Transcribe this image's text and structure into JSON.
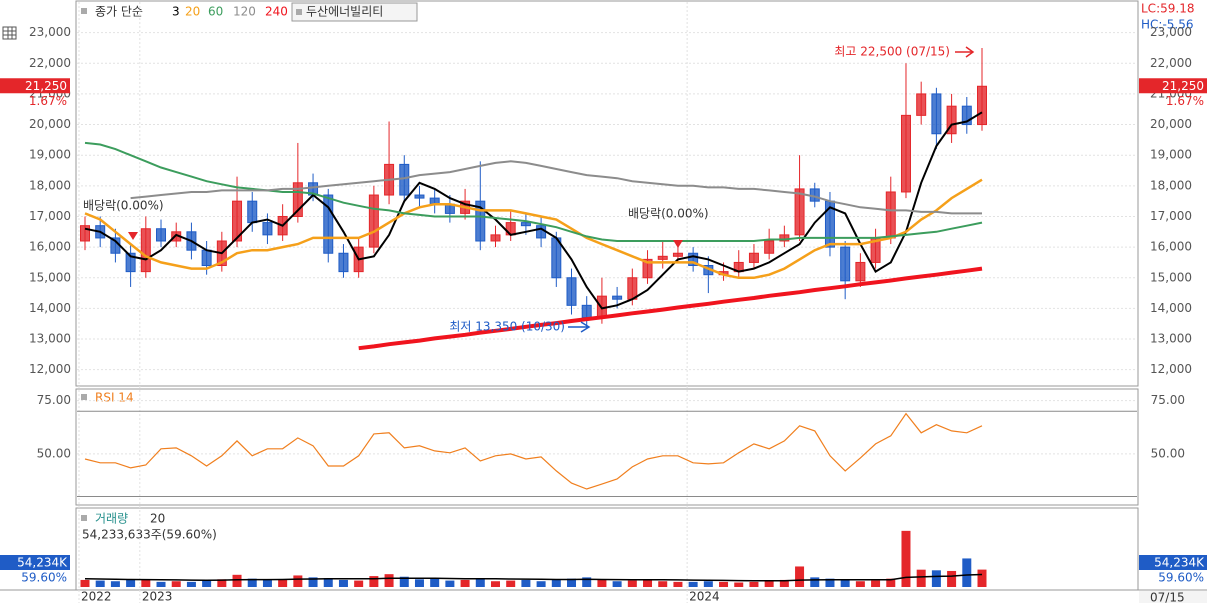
{
  "chart_data": [
    {
      "type": "candlestick",
      "title": "두산에너빌리티",
      "legend_prefix": "종가 단순",
      "categories": [
        "2022",
        null,
        null,
        null,
        "2023",
        null,
        null,
        null,
        null,
        null,
        null,
        null,
        null,
        null,
        null,
        null,
        null,
        null,
        null,
        null,
        null,
        null,
        null,
        null,
        null,
        null,
        null,
        null,
        null,
        null,
        null,
        null,
        null,
        null,
        null,
        null,
        null,
        null,
        null,
        null,
        "2024",
        null,
        null,
        null,
        null,
        null,
        null,
        null,
        null,
        null,
        null,
        null,
        null,
        null,
        null,
        null,
        null,
        null,
        null,
        null
      ],
      "open": [
        16200,
        16700,
        16300,
        15800,
        15200,
        16600,
        16200,
        16500,
        15900,
        15400,
        16200,
        17500,
        16800,
        16400,
        17000,
        18100,
        17700,
        15800,
        15200,
        16000,
        17700,
        18700,
        17700,
        17600,
        17400,
        17100,
        17500,
        16200,
        16400,
        16800,
        16700,
        16300,
        15000,
        14100,
        13700,
        14400,
        14300,
        15000,
        15600,
        15700,
        15800,
        15400,
        15100,
        15200,
        15500,
        15800,
        16200,
        16400,
        17900,
        17500,
        16000,
        14900,
        15500,
        16300,
        17800,
        20300,
        21000,
        19700,
        20600,
        20000
      ],
      "high": [
        17000,
        17000,
        16600,
        16100,
        17000,
        16900,
        16800,
        16800,
        16200,
        16500,
        18300,
        17800,
        17100,
        17400,
        19400,
        18400,
        17900,
        16100,
        16300,
        18000,
        20100,
        19000,
        18000,
        17900,
        17700,
        17900,
        18800,
        16700,
        17200,
        17100,
        17000,
        16500,
        15300,
        14400,
        15000,
        14700,
        15300,
        15900,
        16200,
        16100,
        16000,
        15700,
        15500,
        15900,
        16100,
        16600,
        16700,
        19000,
        18100,
        17800,
        16200,
        15800,
        16600,
        18300,
        22000,
        21400,
        21200,
        21000,
        20900,
        22500
      ],
      "low": [
        15900,
        16000,
        15500,
        14700,
        15000,
        16000,
        16000,
        15600,
        15100,
        15200,
        16000,
        16500,
        16100,
        16200,
        16800,
        17500,
        15500,
        15000,
        15000,
        15800,
        17400,
        17500,
        17300,
        17100,
        16800,
        16900,
        15900,
        16000,
        16200,
        16400,
        16000,
        14700,
        13800,
        13350,
        13500,
        14000,
        14100,
        14800,
        15300,
        15500,
        15200,
        14500,
        14900,
        15000,
        15300,
        15600,
        16000,
        16200,
        17300,
        15700,
        14300,
        14700,
        15300,
        16100,
        17600,
        20000,
        19200,
        19400,
        19700,
        19800
      ],
      "close": [
        16700,
        16300,
        15800,
        15200,
        16600,
        16200,
        16500,
        15900,
        15400,
        16200,
        17500,
        16800,
        16400,
        17000,
        18100,
        17700,
        15800,
        15200,
        16000,
        17700,
        18700,
        17700,
        17600,
        17400,
        17100,
        17500,
        16200,
        16400,
        16800,
        16700,
        16300,
        15000,
        14100,
        13700,
        14400,
        14300,
        15000,
        15600,
        15700,
        15800,
        15400,
        15100,
        15200,
        15500,
        15800,
        16200,
        16400,
        17900,
        17500,
        16000,
        14900,
        15500,
        16300,
        17800,
        20300,
        21000,
        19700,
        20600,
        20000,
        21250
      ],
      "up_color": "#e4262a",
      "down_color": "#1f5cc6",
      "series": [
        {
          "name": "3",
          "color": "#000000",
          "values": [
            16600,
            16500,
            16200,
            15700,
            15600,
            15900,
            16400,
            16200,
            15900,
            15800,
            16300,
            16800,
            16900,
            16700,
            17200,
            17700,
            17300,
            16500,
            15600,
            15700,
            16400,
            17500,
            18100,
            17900,
            17600,
            17400,
            17300,
            16900,
            16400,
            16500,
            16600,
            16300,
            15600,
            14700,
            14000,
            14100,
            14300,
            14600,
            15100,
            15600,
            15700,
            15600,
            15400,
            15200,
            15300,
            15500,
            15800,
            16100,
            16800,
            17300,
            17100,
            16100,
            15200,
            15500,
            16500,
            18100,
            19300,
            20000,
            20100,
            20400
          ]
        },
        {
          "name": "20",
          "color": "#f5a01a",
          "values": [
            17100,
            16900,
            16500,
            16100,
            15700,
            15500,
            15400,
            15300,
            15300,
            15500,
            15800,
            15900,
            15900,
            16000,
            16100,
            16300,
            16300,
            16300,
            16300,
            16500,
            16800,
            17100,
            17300,
            17400,
            17400,
            17300,
            17200,
            17200,
            17200,
            17100,
            17000,
            16900,
            16600,
            16300,
            16100,
            15900,
            15700,
            15500,
            15500,
            15500,
            15500,
            15300,
            15100,
            15000,
            15000,
            15100,
            15300,
            15600,
            15900,
            16100,
            16100,
            16100,
            16200,
            16300,
            16500,
            16900,
            17200,
            17600,
            17900,
            18200
          ]
        },
        {
          "name": "60",
          "color": "#3c9d5d",
          "values": [
            19400,
            19350,
            19200,
            19000,
            18800,
            18600,
            18450,
            18300,
            18150,
            18050,
            17950,
            17900,
            17850,
            17800,
            17800,
            17750,
            17600,
            17450,
            17350,
            17250,
            17200,
            17100,
            17050,
            17000,
            17000,
            17000,
            17000,
            16950,
            16900,
            16850,
            16750,
            16650,
            16500,
            16350,
            16250,
            16200,
            16200,
            16200,
            16200,
            16200,
            16200,
            16200,
            16200,
            16200,
            16200,
            16250,
            16250,
            16300,
            16300,
            16300,
            16300,
            16300,
            16300,
            16350,
            16400,
            16450,
            16500,
            16600,
            16700,
            16800
          ]
        },
        {
          "name": "120",
          "color": "#8c8c8c",
          "values": [
            null,
            null,
            null,
            17600,
            17650,
            17700,
            17750,
            17800,
            17800,
            17850,
            17850,
            17850,
            17850,
            17900,
            17900,
            17950,
            18000,
            18050,
            18100,
            18150,
            18200,
            18250,
            18350,
            18400,
            18450,
            18550,
            18650,
            18750,
            18800,
            18750,
            18650,
            18550,
            18450,
            18350,
            18300,
            18250,
            18150,
            18100,
            18050,
            18000,
            18000,
            17950,
            17950,
            17900,
            17900,
            17850,
            17800,
            17750,
            17650,
            17500,
            17400,
            17300,
            17250,
            17200,
            17200,
            17150,
            17150,
            17100,
            17100,
            17100
          ]
        },
        {
          "name": "240",
          "color": "#f0141e",
          "values": [
            null,
            null,
            null,
            null,
            null,
            null,
            null,
            null,
            null,
            null,
            null,
            null,
            null,
            null,
            null,
            null,
            null,
            null,
            12700,
            12760,
            12830,
            12890,
            12950,
            13020,
            13080,
            13140,
            13210,
            13270,
            13330,
            13400,
            13460,
            13520,
            13590,
            13650,
            13710,
            13770,
            13840,
            13900,
            13960,
            14030,
            14090,
            14150,
            14220,
            14280,
            14340,
            14410,
            14470,
            14530,
            14600,
            14660,
            14720,
            14790,
            14850,
            14910,
            14980,
            15040,
            15100,
            15170,
            15230,
            15300
          ]
        }
      ],
      "ylim": [
        11500,
        24000
      ],
      "yticks": [
        {
          "value": 12000,
          "label": "12,000"
        },
        {
          "value": 13000,
          "label": "13,000"
        },
        {
          "value": 14000,
          "label": "14,000"
        },
        {
          "value": 15000,
          "label": "15,000"
        },
        {
          "value": 16000,
          "label": "16,000"
        },
        {
          "value": 17000,
          "label": "17,000"
        },
        {
          "value": 18000,
          "label": "18,000"
        },
        {
          "value": 19000,
          "label": "19,000"
        },
        {
          "value": 20000,
          "label": "20,000"
        },
        {
          "value": 21000,
          "label": "21,000"
        },
        {
          "value": 22000,
          "label": "22,000"
        },
        {
          "value": 23000,
          "label": "23,000"
        }
      ],
      "grid": true,
      "current": {
        "value": 21250,
        "label": "21,250"
      },
      "change_label": "1.67%",
      "lc_label": "LC:59.18",
      "hc_label": "HC:-5.56",
      "cursor_date": "07/15",
      "annotations": {
        "dividend": [
          "배당락(0.00%)",
          "배당락(0.00%)"
        ],
        "high": "최고 22,500 (07/15)",
        "low": "최저 13,350 (10/30)"
      }
    },
    {
      "type": "line",
      "title": "RSI 14",
      "color": "#f07f1e",
      "values": [
        47.6,
        45.8,
        45.8,
        43.4,
        44.8,
        52.4,
        52.8,
        49.1,
        44.3,
        49.1,
        56.1,
        49.1,
        52.4,
        52.4,
        57.5,
        53.8,
        44.3,
        44.3,
        49.1,
        59.4,
        59.9,
        52.8,
        53.8,
        51.4,
        50.5,
        52.8,
        46.7,
        49.1,
        50.0,
        47.6,
        48.6,
        42.0,
        36.3,
        33.5,
        35.8,
        38.2,
        43.9,
        47.6,
        49.1,
        49.1,
        45.8,
        45.3,
        45.8,
        50.5,
        54.7,
        52.4,
        56.1,
        63.2,
        60.8,
        49.1,
        42.0,
        48.1,
        54.7,
        58.5,
        68.9,
        59.9,
        63.7,
        60.8,
        59.9,
        63.2
      ],
      "ylim": [
        26,
        80
      ],
      "yticks": [
        {
          "value": 75,
          "label": "75.00"
        },
        {
          "value": 50,
          "label": "50.00"
        }
      ],
      "reference_lines": [
        70,
        30
      ]
    },
    {
      "type": "bar",
      "legend_name": "거래량",
      "summary": "54,233,633주(59.60%)",
      "series": [
        {
          "name": "거래량",
          "color": "#26908c",
          "values": [
            22000,
            20000,
            18000,
            24000,
            22000,
            16000,
            18000,
            16000,
            20000,
            24000,
            38000,
            26000,
            22000,
            24000,
            36000,
            30000,
            28000,
            22000,
            20000,
            34000,
            40000,
            32000,
            24000,
            28000,
            20000,
            22000,
            24000,
            18000,
            20000,
            22000,
            18000,
            24000,
            26000,
            30000,
            22000,
            18000,
            20000,
            22000,
            18000,
            16000,
            16000,
            18000,
            16000,
            14000,
            16000,
            20000,
            22000,
            64000,
            30000,
            26000,
            22000,
            18000,
            20000,
            26000,
            175000,
            54000,
            52000,
            50000,
            89000,
            54234
          ]
        },
        {
          "name": "20",
          "color": "#000000",
          "values": [
            26000,
            25000,
            24000,
            23500,
            23000,
            22500,
            22000,
            21500,
            21000,
            21500,
            22500,
            23000,
            23000,
            23500,
            24500,
            25000,
            25500,
            26000,
            25500,
            26000,
            27000,
            27500,
            27000,
            27000,
            26500,
            26000,
            26000,
            25500,
            25000,
            24500,
            24000,
            23500,
            23500,
            24000,
            23500,
            23000,
            22500,
            22500,
            22500,
            22000,
            21500,
            21000,
            20500,
            20000,
            19500,
            19500,
            19500,
            21500,
            22000,
            22500,
            22500,
            22500,
            22500,
            22500,
            30000,
            31500,
            33000,
            34000,
            37500,
            39000
          ]
        }
      ],
      "ylim": [
        0,
        240000
      ],
      "current": {
        "value": 54234,
        "label": "54,234K"
      },
      "ratio_label": "59.60%"
    }
  ]
}
